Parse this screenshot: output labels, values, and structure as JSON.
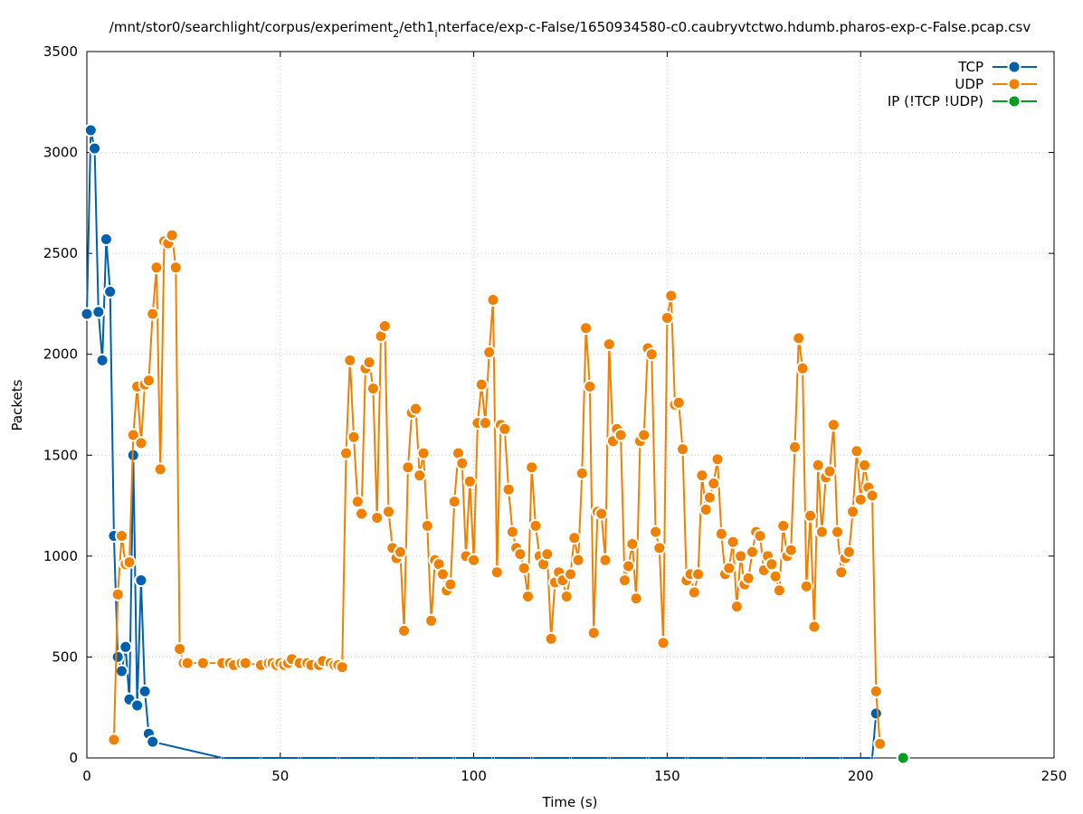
{
  "chart_data": {
    "type": "line",
    "title": "/mnt/stor0/searchlight/corpus/experiment_2/eth1_interface/exp-c-False/1650934580-c0.caubryvtctwo.hdumb.pharos-exp-c-False.pcap.csv",
    "title_parts": {
      "pre": "/mnt/stor0/searchlight/corpus/experiment",
      "sub1": "2",
      "mid": "/eth1",
      "sub2": "i",
      "post": "nterface/exp-c-False/1650934580-c0.caubryvtctwo.hdumb.pharos-exp-c-False.pcap.csv"
    },
    "xlabel": "Time (s)",
    "ylabel": "Packets",
    "xlim": [
      0,
      250
    ],
    "ylim": [
      0,
      3500
    ],
    "xticks": [
      0,
      50,
      100,
      150,
      200,
      250
    ],
    "yticks": [
      0,
      500,
      1000,
      1500,
      2000,
      2500,
      3000,
      3500
    ],
    "grid": true,
    "legend_position": "top-right",
    "series": [
      {
        "name": "TCP",
        "color": "#0060ad",
        "points": [
          [
            0,
            2200
          ],
          [
            1,
            3110
          ],
          [
            2,
            3020
          ],
          [
            3,
            2210
          ],
          [
            4,
            1970
          ],
          [
            5,
            2570
          ],
          [
            6,
            2310
          ],
          [
            7,
            1100
          ],
          [
            8,
            500
          ],
          [
            9,
            430
          ],
          [
            10,
            550
          ],
          [
            11,
            290
          ],
          [
            12,
            1500
          ],
          [
            13,
            260
          ],
          [
            14,
            880
          ],
          [
            15,
            330
          ],
          [
            16,
            120
          ],
          [
            17,
            80
          ],
          [
            35,
            0
          ],
          [
            45,
            0
          ],
          [
            55,
            0
          ],
          [
            65,
            0
          ],
          [
            75,
            0
          ],
          [
            85,
            0
          ],
          [
            95,
            0
          ],
          [
            105,
            0
          ],
          [
            115,
            0
          ],
          [
            125,
            0
          ],
          [
            135,
            0
          ],
          [
            145,
            0
          ],
          [
            155,
            0
          ],
          [
            165,
            0
          ],
          [
            175,
            0
          ],
          [
            185,
            0
          ],
          [
            195,
            0
          ],
          [
            203,
            0
          ],
          [
            204,
            220
          ]
        ]
      },
      {
        "name": "UDP",
        "color": "#f08000",
        "points": [
          [
            7,
            90
          ],
          [
            8,
            810
          ],
          [
            9,
            1100
          ],
          [
            10,
            960
          ],
          [
            11,
            970
          ],
          [
            12,
            1600
          ],
          [
            13,
            1840
          ],
          [
            14,
            1560
          ],
          [
            15,
            1850
          ],
          [
            16,
            1870
          ],
          [
            17,
            2200
          ],
          [
            18,
            2430
          ],
          [
            19,
            1430
          ],
          [
            20,
            2560
          ],
          [
            21,
            2550
          ],
          [
            22,
            2590
          ],
          [
            23,
            2430
          ],
          [
            24,
            540
          ],
          [
            25,
            470
          ],
          [
            26,
            470
          ],
          [
            30,
            470
          ],
          [
            35,
            470
          ],
          [
            37,
            470
          ],
          [
            38,
            460
          ],
          [
            40,
            470
          ],
          [
            41,
            470
          ],
          [
            45,
            460
          ],
          [
            47,
            470
          ],
          [
            48,
            470
          ],
          [
            49,
            460
          ],
          [
            50,
            470
          ],
          [
            51,
            460
          ],
          [
            52,
            470
          ],
          [
            53,
            490
          ],
          [
            55,
            470
          ],
          [
            57,
            470
          ],
          [
            58,
            460
          ],
          [
            60,
            460
          ],
          [
            61,
            480
          ],
          [
            63,
            470
          ],
          [
            64,
            460
          ],
          [
            65,
            460
          ],
          [
            66,
            450
          ],
          [
            67,
            1510
          ],
          [
            68,
            1970
          ],
          [
            69,
            1590
          ],
          [
            70,
            1270
          ],
          [
            71,
            1210
          ],
          [
            72,
            1930
          ],
          [
            73,
            1960
          ],
          [
            74,
            1830
          ],
          [
            75,
            1190
          ],
          [
            76,
            2090
          ],
          [
            77,
            2140
          ],
          [
            78,
            1220
          ],
          [
            79,
            1040
          ],
          [
            80,
            990
          ],
          [
            81,
            1020
          ],
          [
            82,
            630
          ],
          [
            83,
            1440
          ],
          [
            84,
            1710
          ],
          [
            85,
            1730
          ],
          [
            86,
            1400
          ],
          [
            87,
            1510
          ],
          [
            88,
            1150
          ],
          [
            89,
            680
          ],
          [
            90,
            980
          ],
          [
            91,
            960
          ],
          [
            92,
            910
          ],
          [
            93,
            830
          ],
          [
            94,
            860
          ],
          [
            95,
            1270
          ],
          [
            96,
            1510
          ],
          [
            97,
            1460
          ],
          [
            98,
            1000
          ],
          [
            99,
            1370
          ],
          [
            100,
            980
          ],
          [
            101,
            1660
          ],
          [
            102,
            1850
          ],
          [
            103,
            1660
          ],
          [
            104,
            2010
          ],
          [
            105,
            2270
          ],
          [
            106,
            920
          ],
          [
            107,
            1650
          ],
          [
            108,
            1630
          ],
          [
            109,
            1330
          ],
          [
            110,
            1120
          ],
          [
            111,
            1040
          ],
          [
            112,
            1010
          ],
          [
            113,
            940
          ],
          [
            114,
            800
          ],
          [
            115,
            1440
          ],
          [
            116,
            1150
          ],
          [
            117,
            1000
          ],
          [
            118,
            960
          ],
          [
            119,
            1010
          ],
          [
            120,
            590
          ],
          [
            121,
            870
          ],
          [
            122,
            920
          ],
          [
            123,
            880
          ],
          [
            124,
            800
          ],
          [
            125,
            910
          ],
          [
            126,
            1090
          ],
          [
            127,
            980
          ],
          [
            128,
            1410
          ],
          [
            129,
            2130
          ],
          [
            130,
            1840
          ],
          [
            131,
            620
          ],
          [
            132,
            1220
          ],
          [
            133,
            1210
          ],
          [
            134,
            980
          ],
          [
            135,
            2050
          ],
          [
            136,
            1570
          ],
          [
            137,
            1630
          ],
          [
            138,
            1600
          ],
          [
            139,
            880
          ],
          [
            140,
            950
          ],
          [
            141,
            1060
          ],
          [
            142,
            790
          ],
          [
            143,
            1570
          ],
          [
            144,
            1600
          ],
          [
            145,
            2030
          ],
          [
            146,
            2000
          ],
          [
            147,
            1120
          ],
          [
            148,
            1040
          ],
          [
            149,
            570
          ],
          [
            150,
            2180
          ],
          [
            151,
            2290
          ],
          [
            152,
            1750
          ],
          [
            153,
            1760
          ],
          [
            154,
            1530
          ],
          [
            155,
            880
          ],
          [
            156,
            910
          ],
          [
            157,
            820
          ],
          [
            158,
            910
          ],
          [
            159,
            1400
          ],
          [
            160,
            1230
          ],
          [
            161,
            1290
          ],
          [
            162,
            1360
          ],
          [
            163,
            1480
          ],
          [
            164,
            1110
          ],
          [
            165,
            910
          ],
          [
            166,
            940
          ],
          [
            167,
            1070
          ],
          [
            168,
            750
          ],
          [
            169,
            1000
          ],
          [
            170,
            860
          ],
          [
            171,
            890
          ],
          [
            172,
            1020
          ],
          [
            173,
            1120
          ],
          [
            174,
            1100
          ],
          [
            175,
            930
          ],
          [
            176,
            1000
          ],
          [
            177,
            960
          ],
          [
            178,
            900
          ],
          [
            179,
            830
          ],
          [
            180,
            1150
          ],
          [
            181,
            1000
          ],
          [
            182,
            1030
          ],
          [
            183,
            1540
          ],
          [
            184,
            2080
          ],
          [
            185,
            1930
          ],
          [
            186,
            850
          ],
          [
            187,
            1200
          ],
          [
            188,
            650
          ],
          [
            189,
            1450
          ],
          [
            190,
            1120
          ],
          [
            191,
            1390
          ],
          [
            192,
            1420
          ],
          [
            193,
            1650
          ],
          [
            194,
            1120
          ],
          [
            195,
            920
          ],
          [
            196,
            990
          ],
          [
            197,
            1020
          ],
          [
            198,
            1220
          ],
          [
            199,
            1520
          ],
          [
            200,
            1280
          ],
          [
            201,
            1450
          ],
          [
            202,
            1340
          ],
          [
            203,
            1300
          ],
          [
            204,
            330
          ],
          [
            205,
            70
          ]
        ]
      },
      {
        "name": "IP (!TCP  !UDP)",
        "color": "#009e20",
        "points": [
          [
            211,
            0
          ]
        ]
      }
    ]
  }
}
